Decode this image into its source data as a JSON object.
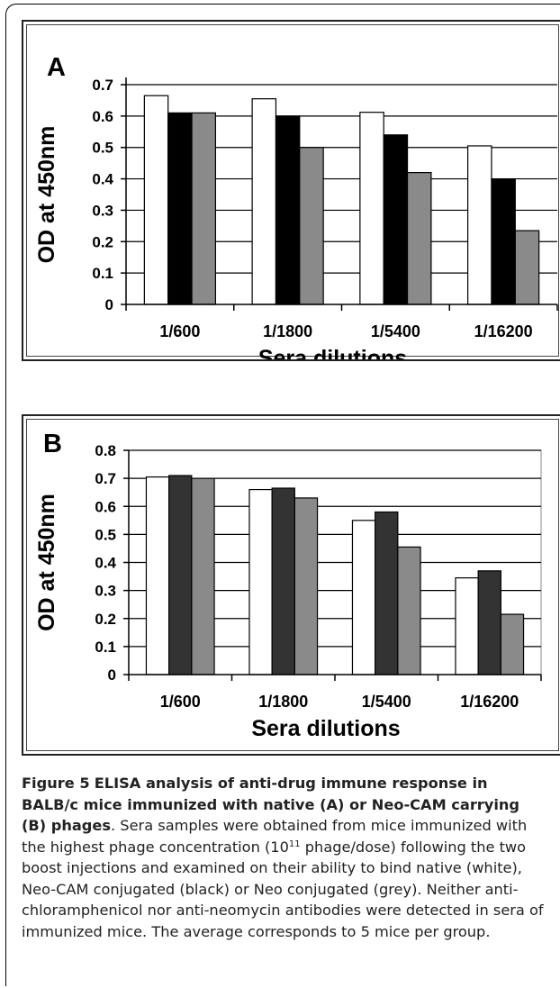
{
  "chart_data": [
    {
      "type": "bar",
      "panel_label": "A",
      "categories": [
        "1/600",
        "1/1800",
        "1/5400",
        "1/16200"
      ],
      "series": [
        {
          "values": [
            0.665,
            0.655,
            0.612,
            0.505
          ],
          "color": "#ffffff"
        },
        {
          "values": [
            0.61,
            0.6,
            0.54,
            0.4
          ],
          "color": "#000000"
        },
        {
          "values": [
            0.61,
            0.5,
            0.42,
            0.235
          ],
          "color": "#8a8a8a"
        }
      ],
      "yticks": [
        "0",
        "0.1",
        "0.2",
        "0.3",
        "0.4",
        "0.5",
        "0.6",
        "0.7"
      ],
      "ylim": [
        0,
        0.7
      ],
      "xlabel": "Sera dilutions",
      "ylabel": "OD at 450nm",
      "grid": true
    },
    {
      "type": "bar",
      "panel_label": "B",
      "categories": [
        "1/600",
        "1/1800",
        "1/5400",
        "1/16200"
      ],
      "series": [
        {
          "values": [
            0.705,
            0.66,
            0.55,
            0.345
          ],
          "color": "#ffffff"
        },
        {
          "values": [
            0.71,
            0.665,
            0.58,
            0.37
          ],
          "color": "#333333"
        },
        {
          "values": [
            0.7,
            0.63,
            0.455,
            0.215
          ],
          "color": "#8a8a8a"
        }
      ],
      "yticks": [
        "0",
        "0.1",
        "0.2",
        "0.3",
        "0.4",
        "0.5",
        "0.6",
        "0.7",
        "0.8"
      ],
      "ylim": [
        0,
        0.8
      ],
      "xlabel": "Sera dilutions",
      "ylabel": "OD at 450nm",
      "grid": true
    }
  ],
  "caption": {
    "label": "Figure 5",
    "title": "ELISA analysis of anti-drug immune response in BALB/c mice immunized with native (A) or Neo-CAM carrying (B) phages",
    "body_1": ". Sera samples were obtained from mice immunized with the highest phage concentration (10",
    "superscript": "11",
    "body_2": " phage/dose) following the two boost injections and examined on their ability to bind native (white), Neo-CAM conjugated (black) or Neo conjugated (grey). Neither anti-chloramphenicol nor anti-neomycin antibodies were detected in sera of immunized mice. The average corresponds to 5 mice per group."
  }
}
